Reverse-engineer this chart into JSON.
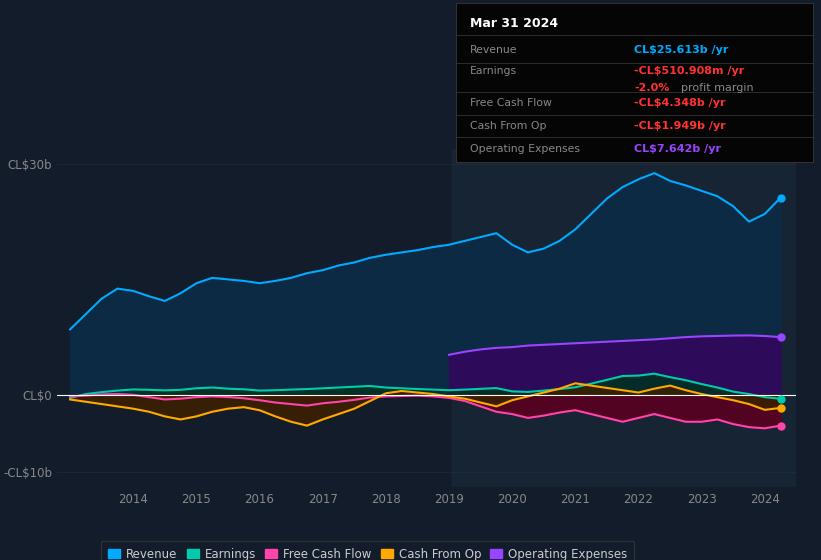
{
  "bg_color": "#131c2b",
  "plot_bg_color": "#131c2b",
  "ylim": [
    -12000,
    32000
  ],
  "yticks": [
    -10000,
    0,
    30000
  ],
  "ytick_labels": [
    "-CL$10b",
    "CL$0",
    "CL$30b"
  ],
  "xticks": [
    2014,
    2015,
    2016,
    2017,
    2018,
    2019,
    2020,
    2021,
    2022,
    2023,
    2024
  ],
  "xlim": [
    2012.8,
    2024.5
  ],
  "revenue_color": "#00aaff",
  "revenue_fill": "#0d2a45",
  "earnings_color": "#00ccaa",
  "earnings_fill": "#003322",
  "fcf_color": "#ff44aa",
  "fcf_fill": "#5a0020",
  "cfo_color": "#ffaa00",
  "cfo_fill": "#3a2000",
  "opex_color": "#9944ff",
  "opex_fill": "#2d0a5a",
  "highlight_color": "#1e2e40",
  "zero_line_color": "#ffffff",
  "grid_color": "#253545",
  "text_color": "#888888",
  "box_bg": "#050505",
  "box_border": "#333333",
  "series_x": [
    2013.0,
    2013.25,
    2013.5,
    2013.75,
    2014.0,
    2014.25,
    2014.5,
    2014.75,
    2015.0,
    2015.25,
    2015.5,
    2015.75,
    2016.0,
    2016.25,
    2016.5,
    2016.75,
    2017.0,
    2017.25,
    2017.5,
    2017.75,
    2018.0,
    2018.25,
    2018.5,
    2018.75,
    2019.0,
    2019.25,
    2019.5,
    2019.75,
    2020.0,
    2020.25,
    2020.5,
    2020.75,
    2021.0,
    2021.25,
    2021.5,
    2021.75,
    2022.0,
    2022.25,
    2022.5,
    2022.75,
    2023.0,
    2023.25,
    2023.5,
    2023.75,
    2024.0,
    2024.25
  ],
  "revenue_y": [
    8500,
    10500,
    12500,
    13800,
    13500,
    12800,
    12200,
    13200,
    14500,
    15200,
    15000,
    14800,
    14500,
    14800,
    15200,
    15800,
    16200,
    16800,
    17200,
    17800,
    18200,
    18500,
    18800,
    19200,
    19500,
    20000,
    20500,
    21000,
    19500,
    18500,
    19000,
    20000,
    21500,
    23500,
    25500,
    27000,
    28000,
    28800,
    27800,
    27200,
    26500,
    25800,
    24500,
    22500,
    23500,
    25613
  ],
  "earnings_y": [
    -400,
    100,
    350,
    550,
    700,
    650,
    580,
    650,
    850,
    950,
    800,
    720,
    550,
    600,
    680,
    750,
    850,
    950,
    1050,
    1150,
    950,
    850,
    750,
    680,
    600,
    680,
    780,
    880,
    450,
    380,
    550,
    750,
    980,
    1450,
    1950,
    2450,
    2500,
    2750,
    2300,
    1900,
    1400,
    950,
    420,
    100,
    -300,
    -511
  ],
  "fcf_y": [
    -200,
    -100,
    50,
    100,
    0,
    -300,
    -600,
    -500,
    -300,
    -200,
    -280,
    -450,
    -700,
    -1000,
    -1200,
    -1400,
    -1100,
    -900,
    -650,
    -350,
    -200,
    -150,
    -100,
    -200,
    -400,
    -800,
    -1500,
    -2200,
    -2500,
    -3000,
    -2700,
    -2300,
    -2000,
    -2500,
    -3000,
    -3500,
    -3000,
    -2500,
    -3000,
    -3500,
    -3500,
    -3200,
    -3800,
    -4200,
    -4348,
    -4000
  ],
  "cfo_y": [
    -600,
    -900,
    -1200,
    -1500,
    -1800,
    -2200,
    -2800,
    -3200,
    -2800,
    -2200,
    -1800,
    -1600,
    -2000,
    -2800,
    -3500,
    -4000,
    -3200,
    -2500,
    -1800,
    -800,
    200,
    500,
    300,
    100,
    -200,
    -500,
    -1000,
    -1500,
    -700,
    -200,
    300,
    800,
    1500,
    1200,
    900,
    600,
    300,
    800,
    1200,
    600,
    100,
    -300,
    -700,
    -1200,
    -1949,
    -1700
  ],
  "opex_x": [
    2019.0,
    2019.25,
    2019.5,
    2019.75,
    2020.0,
    2020.25,
    2020.5,
    2020.75,
    2021.0,
    2021.25,
    2021.5,
    2021.75,
    2022.0,
    2022.25,
    2022.5,
    2022.75,
    2023.0,
    2023.25,
    2023.5,
    2023.75,
    2024.0,
    2024.25
  ],
  "opex_y": [
    5200,
    5600,
    5900,
    6100,
    6200,
    6400,
    6500,
    6600,
    6700,
    6800,
    6900,
    7000,
    7100,
    7200,
    7350,
    7500,
    7600,
    7650,
    7700,
    7720,
    7642,
    7500
  ],
  "legend": [
    {
      "label": "Revenue",
      "color": "#00aaff"
    },
    {
      "label": "Earnings",
      "color": "#00ccaa"
    },
    {
      "label": "Free Cash Flow",
      "color": "#ff44aa"
    },
    {
      "label": "Cash From Op",
      "color": "#ffaa00"
    },
    {
      "label": "Operating Expenses",
      "color": "#9944ff"
    }
  ]
}
